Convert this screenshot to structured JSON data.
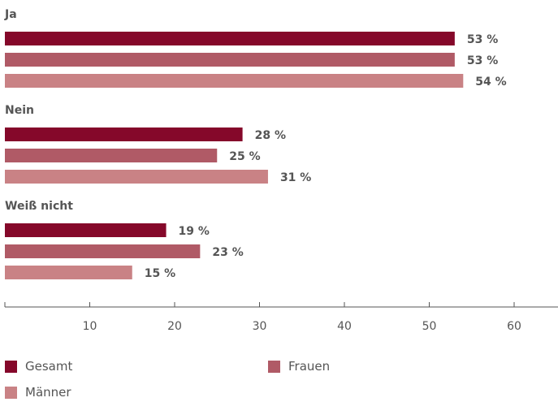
{
  "chart_data": {
    "type": "bar",
    "orientation": "horizontal",
    "categories": [
      "Ja",
      "Nein",
      "Weiß nicht"
    ],
    "series": [
      {
        "name": "Gesamt",
        "values": [
          53,
          28,
          19
        ],
        "labels": [
          "53 %",
          "28 %",
          "19 %"
        ],
        "color": "#85082a"
      },
      {
        "name": "Frauen",
        "values": [
          53,
          25,
          23
        ],
        "labels": [
          "53 %",
          "25 %",
          "23 %"
        ],
        "color": "#b05a66"
      },
      {
        "name": "Männer",
        "values": [
          54,
          31,
          15
        ],
        "labels": [
          "54 %",
          "31 %",
          "15 %"
        ],
        "color": "#c98285"
      }
    ],
    "xlim": [
      0,
      65
    ],
    "xticks": [
      10,
      20,
      30,
      40,
      50,
      60
    ],
    "xlabel": "",
    "ylabel": "",
    "title": "",
    "grid": false,
    "legend_position": "bottom"
  }
}
